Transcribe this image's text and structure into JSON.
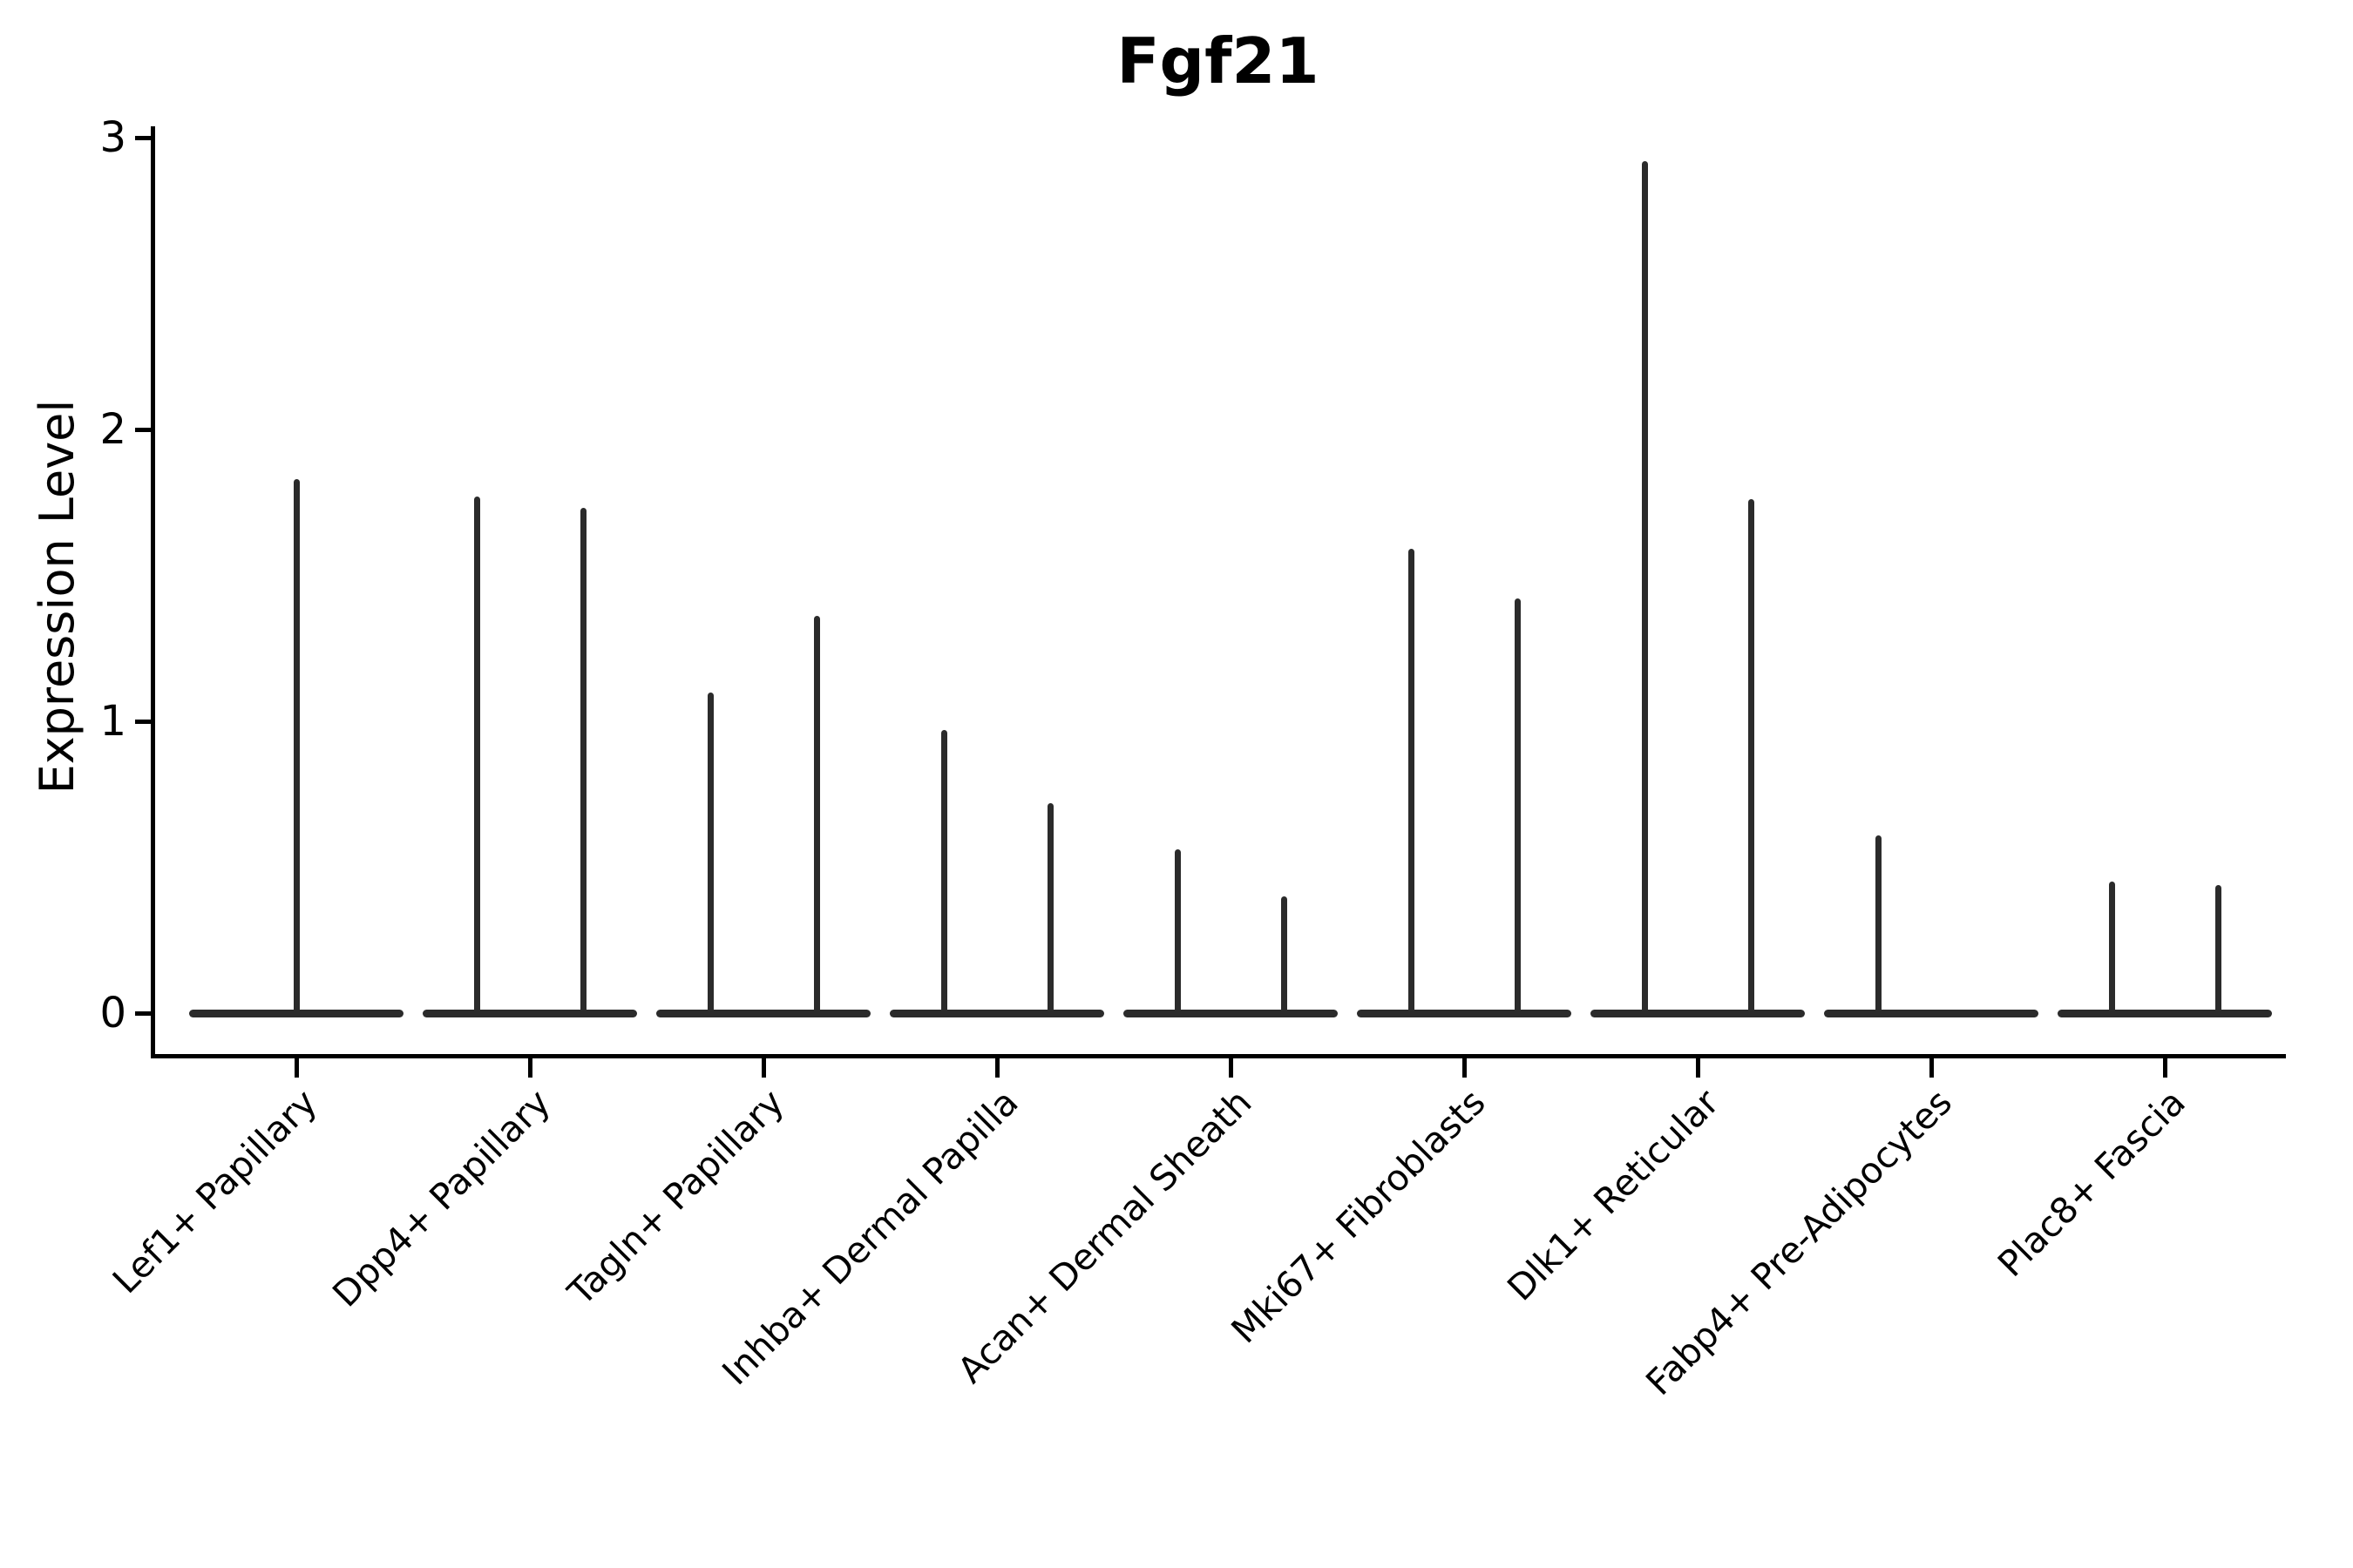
{
  "title": "Fgf21",
  "y_axis": {
    "label": "Expression Level",
    "tick_labels": [
      "0",
      "1",
      "2",
      "3"
    ]
  },
  "chart_data": {
    "type": "violin",
    "title": "Fgf21",
    "xlabel": "",
    "ylabel": "Expression Level",
    "ylim": [
      0,
      3
    ],
    "yticks": [
      0,
      1,
      2,
      3
    ],
    "grid": false,
    "legend": "none",
    "categories": [
      "Lef1+ Papillary",
      "Dpp4+ Papillary",
      "Tagln+ Papillary",
      "Inhba+ Dermal Papilla",
      "Acan+ Dermal Sheath",
      "Mki67+ Fibroblasts",
      "Dlk1+ Reticular",
      "Fabp4+ Pre-Adipocytes",
      "Plac8+ Fascia"
    ],
    "description": "Sparse-expression violin plot: each category shows a flat violin body at 0 with thin spikes rising to the maximum expression of each violin",
    "violins": [
      {
        "category": "Lef1+ Papillary",
        "spikes": [
          {
            "slot": "center",
            "max": 1.83
          }
        ]
      },
      {
        "category": "Dpp4+ Papillary",
        "spikes": [
          {
            "slot": "left",
            "max": 1.77
          },
          {
            "slot": "right",
            "max": 1.73
          }
        ]
      },
      {
        "category": "Tagln+ Papillary",
        "spikes": [
          {
            "slot": "left",
            "max": 1.1
          },
          {
            "slot": "right",
            "max": 1.36
          }
        ]
      },
      {
        "category": "Inhba+ Dermal Papilla",
        "spikes": [
          {
            "slot": "left",
            "max": 0.97
          },
          {
            "slot": "right",
            "max": 0.72
          }
        ]
      },
      {
        "category": "Acan+ Dermal Sheath",
        "spikes": [
          {
            "slot": "left",
            "max": 0.56
          },
          {
            "slot": "right",
            "max": 0.4
          }
        ]
      },
      {
        "category": "Mki67+ Fibroblasts",
        "spikes": [
          {
            "slot": "left",
            "max": 1.59
          },
          {
            "slot": "right",
            "max": 1.42
          }
        ]
      },
      {
        "category": "Dlk1+ Reticular",
        "spikes": [
          {
            "slot": "left",
            "max": 2.92
          },
          {
            "slot": "right",
            "max": 1.76
          }
        ]
      },
      {
        "category": "Fabp4+ Pre-Adipocytes",
        "spikes": [
          {
            "slot": "left",
            "max": 0.61
          }
        ]
      },
      {
        "category": "Plac8+ Fascia",
        "spikes": [
          {
            "slot": "left",
            "max": 0.45
          },
          {
            "slot": "right",
            "max": 0.44
          }
        ]
      }
    ],
    "baseline_value": 0,
    "colors": {
      "violin": "#2b2b2b",
      "axis": "#000000",
      "background": "#ffffff"
    }
  }
}
